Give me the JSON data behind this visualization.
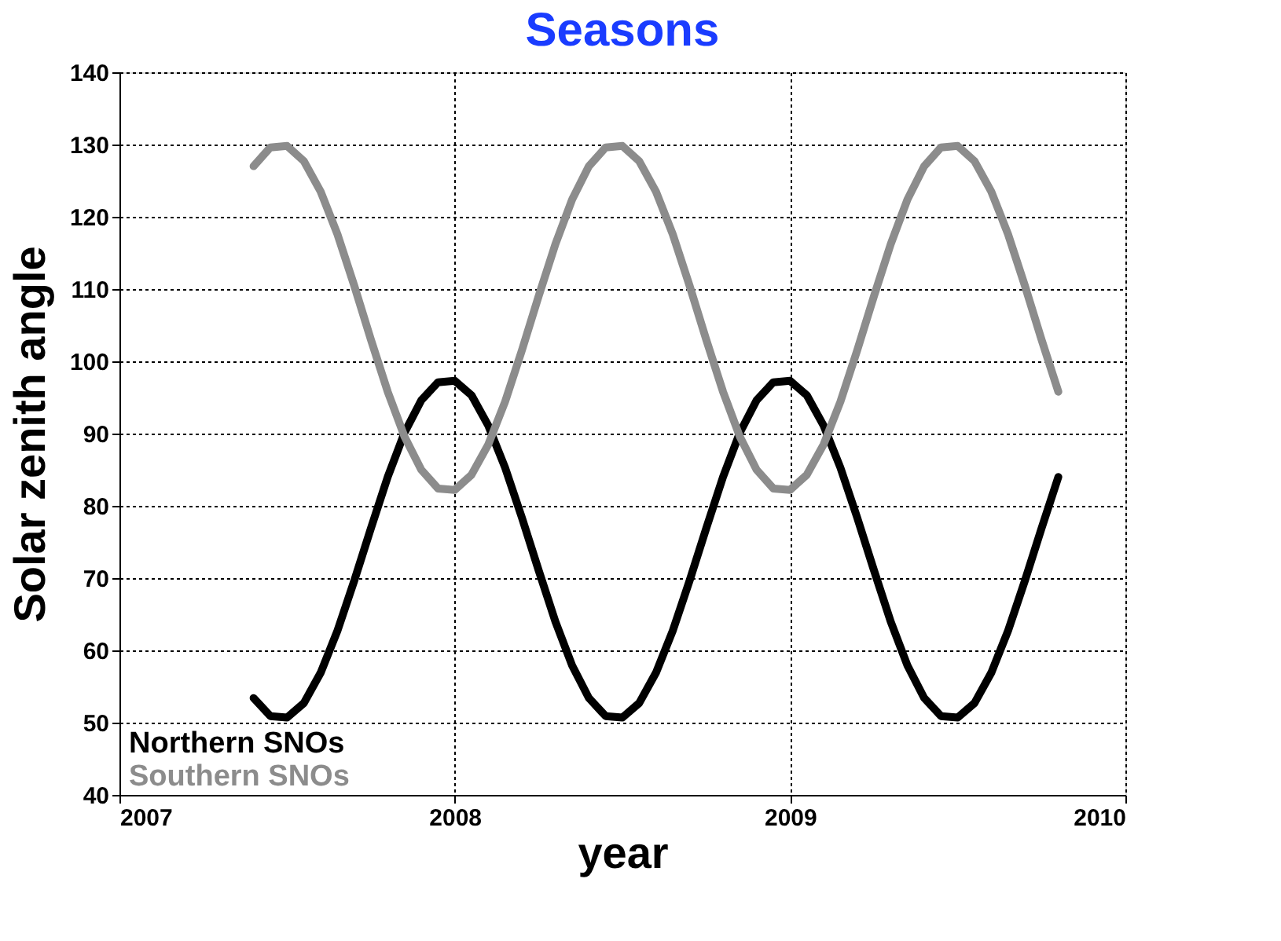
{
  "chart_data": {
    "type": "line",
    "title": "Seasons",
    "xlabel": "year",
    "ylabel": "Solar zenith angle",
    "x": [
      2007.4,
      2007.45,
      2007.5,
      2007.55,
      2007.6,
      2007.65,
      2007.7,
      2007.75,
      2007.8,
      2007.85,
      2007.9,
      2007.95,
      2008.0,
      2008.05,
      2008.1,
      2008.15,
      2008.2,
      2008.25,
      2008.3,
      2008.35,
      2008.4,
      2008.45,
      2008.5,
      2008.55,
      2008.6,
      2008.65,
      2008.7,
      2008.75,
      2008.8,
      2008.85,
      2008.9,
      2008.95,
      2009.0,
      2009.05,
      2009.1,
      2009.15,
      2009.2,
      2009.25,
      2009.3,
      2009.35,
      2009.4,
      2009.45,
      2009.5,
      2009.55,
      2009.6,
      2009.65,
      2009.7,
      2009.75,
      2009.8
    ],
    "series": [
      {
        "name": "Northern SNOs",
        "color": "#000000",
        "values": [
          53.4,
          50.9,
          50.7,
          52.7,
          56.9,
          62.7,
          69.6,
          76.9,
          84.0,
          90.1,
          94.6,
          97.1,
          97.3,
          95.3,
          91.1,
          85.3,
          78.4,
          71.1,
          64.0,
          57.9,
          53.4,
          50.9,
          50.7,
          52.7,
          56.9,
          62.7,
          69.6,
          76.9,
          84.0,
          90.1,
          94.6,
          97.1,
          97.3,
          95.3,
          91.1,
          85.3,
          78.4,
          71.1,
          64.0,
          57.9,
          53.4,
          50.9,
          50.7,
          52.7,
          56.9,
          62.7,
          69.6,
          76.9,
          84.0
        ]
      },
      {
        "name": "Southern SNOs",
        "color": "#8c8c8c",
        "values": [
          127.0,
          129.6,
          129.8,
          127.7,
          123.5,
          117.6,
          110.5,
          103.0,
          95.8,
          89.6,
          85.0,
          82.4,
          82.2,
          84.3,
          88.5,
          94.4,
          101.5,
          109.0,
          116.2,
          122.4,
          127.0,
          129.6,
          129.8,
          127.7,
          123.5,
          117.6,
          110.5,
          103.0,
          95.8,
          89.6,
          85.0,
          82.4,
          82.2,
          84.3,
          88.5,
          94.4,
          101.5,
          109.0,
          116.2,
          122.4,
          127.0,
          129.6,
          129.8,
          127.7,
          123.5,
          117.6,
          110.5,
          103.0,
          95.8
        ]
      }
    ],
    "xlim": [
      2007,
      2010
    ],
    "xticks": [
      2007,
      2008,
      2009,
      2010
    ],
    "ylim": [
      40,
      140
    ],
    "yticks": [
      40,
      50,
      60,
      70,
      80,
      90,
      100,
      110,
      120,
      130,
      140
    ],
    "grid": true,
    "legend": "bottom left",
    "marker": "none",
    "line_style": "solid"
  }
}
